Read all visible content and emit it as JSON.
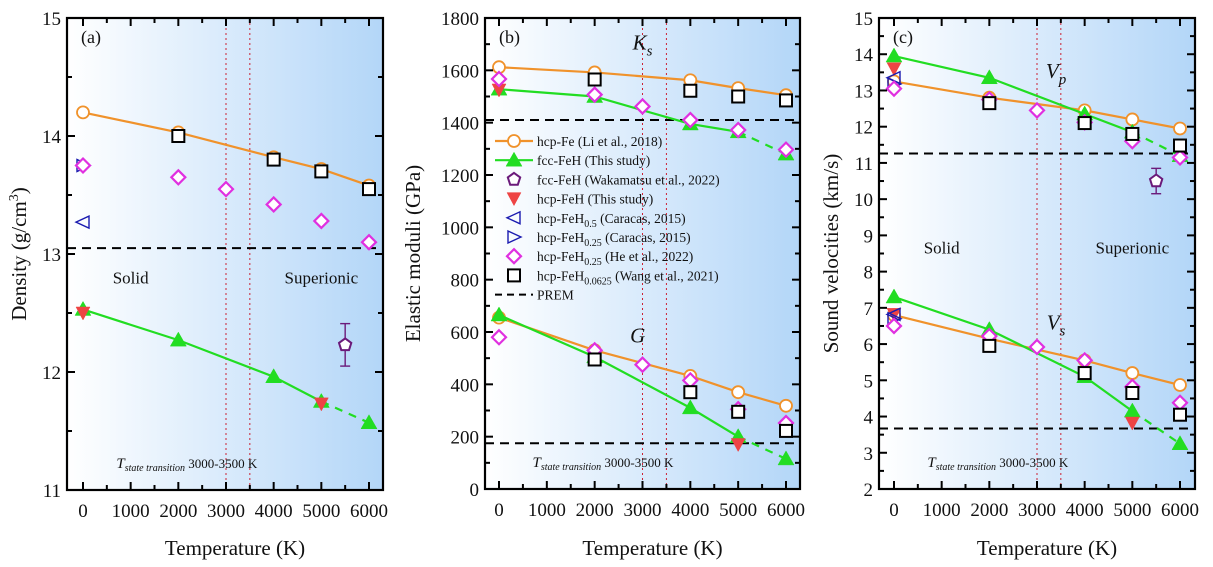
{
  "figure": {
    "colors": {
      "hcp_fe": "#f0922b",
      "fcc_feh": "#22dd22",
      "wakamatsu": "#6b1a7a",
      "hcp_feh": "#ee4444",
      "caracas": "#1a1ab0",
      "he": "#e030e0",
      "wang": "#000000",
      "prem": "#000000",
      "transition": "#cc2233",
      "bg_left": "#ffffff",
      "bg_right": "#b3d6f8"
    },
    "regions": {
      "solid": "Solid",
      "superionic": "Superionic"
    },
    "transition_label": {
      "T": "T",
      "sub": "state transition",
      "range": "3000-3500 K"
    },
    "transition_range": [
      3000,
      3500
    ]
  },
  "chart_data": [
    {
      "type": "scatter",
      "panel": "(a)",
      "title": "",
      "xlabel": "Temperature (K)",
      "ylabel": "Density (g/cm",
      "ylabel_sup": "3",
      "ylabel_close": ")",
      "xlim": [
        -340,
        6300
      ],
      "ylim": [
        11,
        15
      ],
      "xticks": [
        0,
        1000,
        2000,
        3000,
        4000,
        5000,
        6000
      ],
      "yticks": [
        11,
        12,
        13,
        14,
        15
      ],
      "show_regions": true,
      "quantity_labels": [],
      "prem": 13.05,
      "series": [
        {
          "name": "hcp-Fe (Li et al., 2018)",
          "key": "hcp_fe",
          "marker": "circle",
          "line": "solid",
          "x": [
            0,
            2000,
            4000,
            5000,
            6000
          ],
          "y": [
            14.2,
            14.03,
            13.82,
            13.72,
            13.58
          ]
        },
        {
          "name": "fcc-FeH (This study)",
          "key": "fcc_feh",
          "marker": "triangle-up",
          "line": "solid-dashed-last",
          "x": [
            0,
            2000,
            4000,
            5000,
            6000
          ],
          "y": [
            12.53,
            12.27,
            11.96,
            11.75,
            11.57
          ]
        },
        {
          "name": "fcc-FeH (Wakamatsu et al., 2022)",
          "key": "wakamatsu",
          "marker": "pentagon",
          "x": [
            5500
          ],
          "y": [
            12.23
          ],
          "err": [
            0.18
          ]
        },
        {
          "name": "hcp-FeH (This study)",
          "key": "hcp_feh",
          "marker": "triangle-down",
          "x": [
            0,
            5000
          ],
          "y": [
            12.5,
            11.73
          ]
        },
        {
          "name": "hcp-FeH0.5 (Caracas, 2015)",
          "key": "caracas",
          "marker": "triangle-left",
          "x": [
            0
          ],
          "y": [
            13.27
          ]
        },
        {
          "name": "hcp-FeH0.25 (Caracas, 2015)",
          "key": "caracas",
          "marker": "triangle-right",
          "x": [
            0
          ],
          "y": [
            13.75
          ]
        },
        {
          "name": "hcp-FeH0.25 (He et al., 2022)",
          "key": "he",
          "marker": "diamond",
          "x": [
            0,
            2000,
            3000,
            4000,
            5000,
            6000
          ],
          "y": [
            13.75,
            13.65,
            13.55,
            13.42,
            13.28,
            13.1
          ]
        },
        {
          "name": "hcp-FeH0.0625 (Wang et al., 2021)",
          "key": "wang",
          "marker": "square",
          "x": [
            2000,
            4000,
            5000,
            6000
          ],
          "y": [
            14.0,
            13.8,
            13.7,
            13.55
          ]
        }
      ]
    },
    {
      "type": "scatter",
      "panel": "(b)",
      "title": "",
      "xlabel": "Temperature (K)",
      "ylabel": "Elastic moduli (GPa)",
      "ylabel_sup": "",
      "ylabel_close": "",
      "xlim": [
        -340,
        6300
      ],
      "ylim": [
        0,
        1800
      ],
      "xticks": [
        0,
        1000,
        2000,
        3000,
        4000,
        5000,
        6000
      ],
      "yticks": [
        0,
        200,
        400,
        600,
        800,
        1000,
        1200,
        1400,
        1600,
        1800
      ],
      "show_regions": false,
      "quantity_labels": [
        {
          "main": "K",
          "sub": "s",
          "x": 3000,
          "y": 1680
        },
        {
          "main": "G",
          "x": 2900,
          "y": 560
        }
      ],
      "prem": [
        1410,
        175
      ],
      "series": [
        {
          "name": "hcp-Fe (Li et al., 2018)",
          "key": "hcp_fe",
          "marker": "circle",
          "line": "solid",
          "x": [
            0,
            2000,
            4000,
            5000,
            6000
          ],
          "y": [
            1612,
            1592,
            1562,
            1532,
            1505
          ]
        },
        {
          "name": "hcp-Fe (Li et al., 2018) G",
          "key": "hcp_fe",
          "marker": "circle",
          "line": "solid",
          "x": [
            0,
            2000,
            4000,
            5000,
            6000
          ],
          "y": [
            655,
            530,
            432,
            370,
            318
          ],
          "legend": false
        },
        {
          "name": "fcc-FeH (This study)",
          "key": "fcc_feh",
          "marker": "triangle-up",
          "line": "solid-dashed-last",
          "x": [
            0,
            2000,
            4000,
            5000,
            6000
          ],
          "y": [
            1528,
            1500,
            1395,
            1365,
            1280
          ]
        },
        {
          "name": "fcc-FeH (This study) G",
          "key": "fcc_feh",
          "marker": "triangle-up",
          "line": "solid-dashed-last",
          "x": [
            0,
            2000,
            4000,
            5000,
            6000
          ],
          "y": [
            665,
            505,
            310,
            200,
            115
          ],
          "legend": false
        },
        {
          "name": "hcp-FeH (This study)",
          "key": "hcp_feh",
          "marker": "triangle-down",
          "x": [
            0,
            5000
          ],
          "y": [
            1525,
            170
          ]
        },
        {
          "name": "hcp-FeH0.25 (He et al., 2022)",
          "key": "he",
          "marker": "diamond",
          "x": [
            0,
            2000,
            3000,
            4000,
            5000,
            6000,
            0,
            2000,
            3000,
            4000,
            5000,
            6000
          ],
          "y": [
            1567,
            1507,
            1462,
            1410,
            1372,
            1297,
            580,
            530,
            475,
            415,
            305,
            252
          ]
        },
        {
          "name": "hcp-FeH0.0625 (Wang et al., 2021)",
          "key": "wang",
          "marker": "square",
          "x": [
            2000,
            4000,
            5000,
            6000,
            2000,
            4000,
            5000,
            6000
          ],
          "y": [
            1565,
            1522,
            1500,
            1485,
            495,
            370,
            295,
            222
          ]
        }
      ],
      "legend": {
        "placement": "center-left",
        "entries": [
          {
            "label": "hcp-Fe (Li et al., 2018)",
            "key": "hcp_fe",
            "marker": "circle",
            "line": "solid"
          },
          {
            "label": "fcc-FeH (This study)",
            "key": "fcc_feh",
            "marker": "triangle-up",
            "line": "solid"
          },
          {
            "label": "fcc-FeH (Wakamatsu et al., 2022)",
            "key": "wakamatsu",
            "marker": "pentagon"
          },
          {
            "label": "hcp-FeH (This study)",
            "key": "hcp_feh",
            "marker": "triangle-down"
          },
          {
            "label": "hcp-FeH",
            "sub": "0.5",
            "tail": " (Caracas, 2015)",
            "key": "caracas",
            "marker": "triangle-left"
          },
          {
            "label": "hcp-FeH",
            "sub": "0.25",
            "tail": " (Caracas, 2015)",
            "key": "caracas",
            "marker": "triangle-right"
          },
          {
            "label": "hcp-FeH",
            "sub": "0.25",
            "tail": " (He et al., 2022)",
            "key": "he",
            "marker": "diamond"
          },
          {
            "label": "hcp-FeH",
            "sub": "0.0625",
            "tail": " (Wang et al., 2021)",
            "key": "wang",
            "marker": "square"
          },
          {
            "label": "PREM",
            "key": "prem",
            "marker": "none",
            "line": "dashed"
          }
        ]
      }
    },
    {
      "type": "scatter",
      "panel": "(c)",
      "title": "",
      "xlabel": "Temperature (K)",
      "ylabel": "Sound velocities (km/s)",
      "ylabel_sup": "",
      "ylabel_close": "",
      "xlim": [
        -340,
        6300
      ],
      "ylim": [
        2,
        15
      ],
      "xticks": [
        0,
        1000,
        2000,
        3000,
        4000,
        5000,
        6000
      ],
      "yticks": [
        2,
        3,
        4,
        5,
        6,
        7,
        8,
        9,
        10,
        11,
        12,
        13,
        14,
        15
      ],
      "show_regions": true,
      "quantity_labels": [
        {
          "main": "V",
          "sub": "p",
          "x": 3400,
          "y": 13.35
        },
        {
          "main": "V",
          "sub": "s",
          "x": 3400,
          "y": 6.4
        }
      ],
      "prem": [
        11.26,
        3.67
      ],
      "series": [
        {
          "name": "hcp-Fe (Li et al., 2018)",
          "key": "hcp_fe",
          "marker": "circle",
          "line": "solid",
          "x": [
            0,
            2000,
            4000,
            5000,
            6000
          ],
          "y": [
            13.25,
            12.8,
            12.45,
            12.2,
            11.95
          ]
        },
        {
          "name": "hcp-Fe (Li et al., 2018) Vs",
          "key": "hcp_fe",
          "marker": "circle",
          "line": "solid",
          "x": [
            0,
            2000,
            4000,
            5000,
            6000
          ],
          "y": [
            6.8,
            6.15,
            5.55,
            5.2,
            4.87
          ],
          "legend": false
        },
        {
          "name": "fcc-FeH (This study)",
          "key": "fcc_feh",
          "marker": "triangle-up",
          "line": "solid-dashed-last",
          "x": [
            0,
            2000,
            4000,
            5000,
            6000
          ],
          "y": [
            13.95,
            13.35,
            12.35,
            11.85,
            11.2
          ]
        },
        {
          "name": "fcc-FeH (This study) Vs",
          "key": "fcc_feh",
          "marker": "triangle-up",
          "line": "solid-dashed-last",
          "x": [
            0,
            2000,
            4000,
            5000,
            6000
          ],
          "y": [
            7.3,
            6.4,
            5.1,
            4.15,
            3.25
          ],
          "legend": false
        },
        {
          "name": "fcc-FeH (Wakamatsu et al., 2022)",
          "key": "wakamatsu",
          "marker": "pentagon",
          "x": [
            5500
          ],
          "y": [
            10.5
          ],
          "err": [
            0.35
          ]
        },
        {
          "name": "hcp-FeH (This study)",
          "key": "hcp_feh",
          "marker": "triangle-down",
          "x": [
            0,
            0,
            5000
          ],
          "y": [
            13.6,
            6.82,
            3.82
          ]
        },
        {
          "name": "hcp-FeH0.5 (Caracas, 2015)",
          "key": "caracas",
          "marker": "triangle-left",
          "x": [
            0,
            0
          ],
          "y": [
            13.35,
            6.82
          ]
        },
        {
          "name": "hcp-FeH0.25 (Caracas, 2015)",
          "key": "caracas",
          "marker": "triangle-right",
          "x": [
            0,
            0
          ],
          "y": [
            13.18,
            6.7
          ]
        },
        {
          "name": "hcp-FeH0.25 (He et al., 2022)",
          "key": "he",
          "marker": "diamond",
          "x": [
            0,
            2000,
            3000,
            4000,
            5000,
            6000,
            0,
            2000,
            3000,
            4000,
            5000,
            6000
          ],
          "y": [
            13.05,
            12.75,
            12.45,
            12.12,
            11.6,
            11.15,
            6.5,
            6.22,
            5.92,
            5.55,
            4.82,
            4.38
          ]
        },
        {
          "name": "hcp-FeH0.0625 (Wang et al., 2021)",
          "key": "wang",
          "marker": "square",
          "x": [
            2000,
            4000,
            5000,
            6000,
            2000,
            4000,
            5000,
            6000
          ],
          "y": [
            12.65,
            12.1,
            11.8,
            11.48,
            5.95,
            5.2,
            4.65,
            4.05
          ]
        }
      ]
    }
  ]
}
